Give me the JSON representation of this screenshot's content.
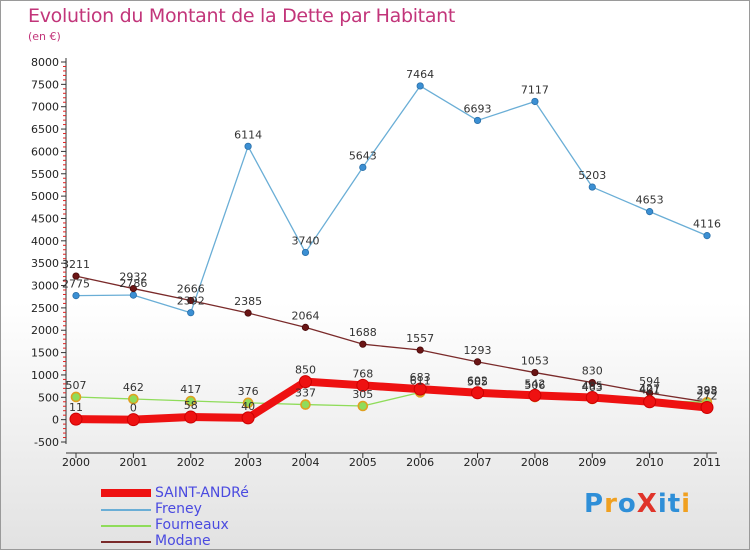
{
  "title": "Evolution du Montant de la Dette par Habitant",
  "subtitle": "(en €)",
  "logo": {
    "text": "ProXiti",
    "colors": [
      "#2f8fd8",
      "#f0a020",
      "#2f8fd8",
      "#e0342a",
      "#2f8fd8",
      "#2f8fd8",
      "#f0a020"
    ]
  },
  "chart_data": {
    "type": "line",
    "x": [
      "2000",
      "2001",
      "2002",
      "2003",
      "2004",
      "2005",
      "2006",
      "2007",
      "2008",
      "2009",
      "2010",
      "2011"
    ],
    "ylim": [
      -500,
      8000
    ],
    "yticks": [
      "-500",
      "0",
      "500",
      "1000",
      "1500",
      "2000",
      "2500",
      "3000",
      "3500",
      "4000",
      "4500",
      "5000",
      "5500",
      "6000",
      "6500",
      "7000",
      "7500",
      "8000"
    ],
    "grid": false,
    "legend_position": "bottom-left",
    "series": [
      {
        "name": "SAINT-ANDRé",
        "color": "#ee1111",
        "values": [
          11,
          0,
          58,
          40,
          850,
          768,
          683,
          602,
          542,
          495,
          401,
          272
        ],
        "labels": [
          "11",
          "0",
          "58",
          "40",
          "850",
          "768",
          "683",
          "602",
          "542",
          "495",
          "401",
          "272"
        ]
      },
      {
        "name": "Freney",
        "color": "#6aaed6",
        "values": [
          2775,
          2786,
          2392,
          6114,
          3740,
          5643,
          7464,
          6693,
          7117,
          5203,
          4653,
          4116
        ],
        "labels": [
          "2775",
          "2786",
          "2392",
          "6114",
          "3740",
          "5643",
          "7464",
          "6693",
          "7117",
          "5203",
          "4653",
          "4116"
        ]
      },
      {
        "name": "Fourneaux",
        "color": "#8fdc5a",
        "values": [
          507,
          462,
          417,
          376,
          337,
          305,
          611,
          585,
          506,
          463,
          427,
          388
        ],
        "labels": [
          "507",
          "462",
          "417",
          "376",
          "337",
          "305",
          "611",
          "585",
          "506",
          "463",
          "427",
          "388"
        ]
      },
      {
        "name": "Modane",
        "color": "#7a2a2a",
        "values": [
          3211,
          2932,
          2666,
          2385,
          2064,
          1688,
          1557,
          1293,
          1053,
          830,
          594,
          393
        ],
        "labels": [
          "3211",
          "2932",
          "2666",
          "2385",
          "2064",
          "1688",
          "1557",
          "1293",
          "1053",
          "830",
          "594",
          "393"
        ]
      }
    ]
  }
}
